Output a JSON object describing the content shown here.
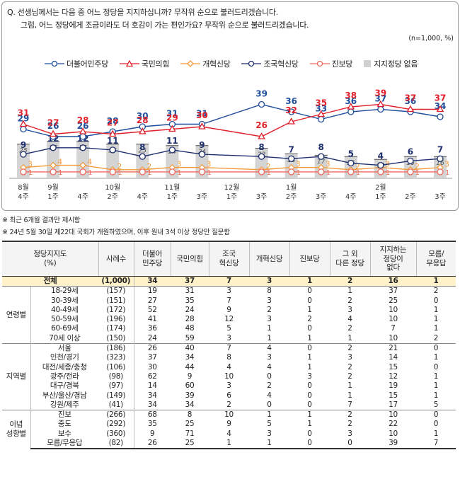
{
  "question": {
    "line1": "Q. 선생님께서는 다음 중 어느 정당을 지지하십니까? 무작위 순으로 불러드리겠습니다.",
    "line2": "그럼, 어느 정당에게 조금이라도 더 호감이 가는 편인가요? 무작위 순으로 불러드리겠습니다.",
    "sample_note": "(n=1,000, %)"
  },
  "colors": {
    "dem": "#1f4e9c",
    "ppp": "#e0202b",
    "reform": "#f39a3a",
    "rebuild": "#1e2f6e",
    "progressive": "#ef6b5f",
    "none_bar": "#d4d4d4"
  },
  "chart_data": {
    "type": "line",
    "x": [
      "8월 4주",
      "9월 1주",
      "4주",
      "10월 2주",
      "4주",
      "11월 1주",
      "3주",
      "12월 1주",
      "3주",
      "1월 2주",
      "3주",
      "4주",
      "2월 1주",
      "2주",
      "3주"
    ],
    "x_month": [
      "8월",
      "9월",
      "",
      "10월",
      "",
      "11월",
      "",
      "12월",
      "",
      "1월",
      "",
      "",
      "2월",
      "",
      ""
    ],
    "x_week": [
      "4주",
      "1주",
      "4주",
      "2주",
      "4주",
      "1주",
      "3주",
      "1주",
      "3주",
      "2주",
      "3주",
      "4주",
      "1주",
      "2주",
      "3주"
    ],
    "ylim": [
      0,
      42
    ],
    "series": [
      {
        "key": "dem",
        "name": "더불어민주당",
        "color": "#1f4e9c",
        "marker": "circle",
        "values": [
          29,
          26,
          26,
          28,
          30,
          31,
          31,
          null,
          39,
          36,
          33,
          36,
          37,
          36,
          34
        ]
      },
      {
        "key": "ppp",
        "name": "국민의힘",
        "color": "#e0202b",
        "marker": "triangle",
        "values": [
          31,
          27,
          28,
          27,
          28,
          29,
          30,
          null,
          26,
          32,
          35,
          38,
          39,
          37,
          37
        ]
      },
      {
        "key": "reform",
        "name": "개혁신당",
        "color": "#f39a3a",
        "marker": "diamond",
        "values": [
          3,
          4,
          4,
          2,
          2,
          3,
          3,
          null,
          2,
          3,
          3,
          2,
          3,
          2,
          3
        ]
      },
      {
        "key": "rebuild",
        "name": "조국혁신당",
        "color": "#1e2f6e",
        "marker": "circle",
        "values": [
          9,
          12,
          12,
          11,
          8,
          11,
          9,
          null,
          8,
          7,
          8,
          5,
          4,
          6,
          7
        ]
      },
      {
        "key": "progressive",
        "name": "진보당",
        "color": "#ef6b5f",
        "marker": "circle",
        "values": [
          1,
          1,
          1,
          1,
          1,
          1,
          1,
          null,
          1,
          1,
          1,
          1,
          1,
          1,
          1
        ]
      }
    ],
    "bars": {
      "name": "지지정당 없음",
      "color": "#d4d4d4",
      "values": [
        25,
        27,
        27,
        25,
        25,
        24,
        24,
        null,
        22,
        18,
        17,
        16,
        14,
        16,
        16
      ]
    }
  },
  "notes": [
    "※ 최근 6개월 결과만 제시함",
    "※ 24년 5월 30일 제22대 국회가 개원하였으며, 이후 원내 3석 이상 정당만 질문함"
  ],
  "table": {
    "header_group": "정당지지도\n(%)",
    "headers": [
      "사례수",
      "더불어\n민주당",
      "국민의힘",
      "조국\n혁신당",
      "개혁신당",
      "진보당",
      "그 외\n다른 정당",
      "지지하는\n정당이\n없다",
      "모름/\n무응답"
    ],
    "total": {
      "label": "전체",
      "values": [
        "(1,000)",
        "34",
        "37",
        "7",
        "3",
        "1",
        "2",
        "16",
        "1"
      ]
    },
    "groups": [
      {
        "name": "연령별",
        "rows": [
          {
            "label": "18-29세",
            "values": [
              "(157)",
              "19",
              "31",
              "3",
              "8",
              "0",
              "1",
              "37",
              "2"
            ]
          },
          {
            "label": "30-39세",
            "values": [
              "(151)",
              "27",
              "35",
              "7",
              "3",
              "0",
              "2",
              "25",
              "0"
            ]
          },
          {
            "label": "40-49세",
            "values": [
              "(172)",
              "52",
              "24",
              "9",
              "2",
              "1",
              "3",
              "10",
              "1"
            ]
          },
          {
            "label": "50-59세",
            "values": [
              "(196)",
              "41",
              "28",
              "12",
              "3",
              "2",
              "4",
              "10",
              "1"
            ]
          },
          {
            "label": "60-69세",
            "values": [
              "(174)",
              "36",
              "48",
              "5",
              "1",
              "0",
              "2",
              "7",
              "1"
            ]
          },
          {
            "label": "70세 이상",
            "values": [
              "(150)",
              "24",
              "59",
              "3",
              "1",
              "1",
              "1",
              "10",
              "2"
            ]
          }
        ]
      },
      {
        "name": "지역별",
        "rows": [
          {
            "label": "서울",
            "values": [
              "(186)",
              "26",
              "40",
              "7",
              "4",
              "0",
              "2",
              "21",
              "0"
            ]
          },
          {
            "label": "인천/경기",
            "values": [
              "(323)",
              "37",
              "34",
              "8",
              "3",
              "1",
              "3",
              "14",
              "1"
            ]
          },
          {
            "label": "대전/세종/충청",
            "values": [
              "(106)",
              "30",
              "44",
              "4",
              "4",
              "1",
              "2",
              "15",
              "0"
            ]
          },
          {
            "label": "광주/전라",
            "values": [
              "(98)",
              "62",
              "9",
              "10",
              "0",
              "3",
              "2",
              "12",
              "1"
            ]
          },
          {
            "label": "대구/경북",
            "values": [
              "(97)",
              "14",
              "60",
              "3",
              "2",
              "0",
              "1",
              "19",
              "1"
            ]
          },
          {
            "label": "부산/울산/경남",
            "values": [
              "(149)",
              "34",
              "39",
              "6",
              "4",
              "0",
              "1",
              "15",
              "1"
            ]
          },
          {
            "label": "강원/제주",
            "values": [
              "(41)",
              "34",
              "34",
              "2",
              "0",
              "0",
              "7",
              "17",
              "5"
            ]
          }
        ]
      },
      {
        "name": "이념\n성향별",
        "rows": [
          {
            "label": "진보",
            "values": [
              "(266)",
              "68",
              "8",
              "10",
              "1",
              "1",
              "2",
              "10",
              "0"
            ]
          },
          {
            "label": "중도",
            "values": [
              "(292)",
              "35",
              "25",
              "9",
              "5",
              "1",
              "2",
              "22",
              "0"
            ]
          },
          {
            "label": "보수",
            "values": [
              "(360)",
              "9",
              "71",
              "4",
              "3",
              "0",
              "3",
              "10",
              "1"
            ]
          },
          {
            "label": "모름/무응답",
            "values": [
              "(82)",
              "26",
              "25",
              "1",
              "1",
              "0",
              "0",
              "39",
              "7"
            ]
          }
        ]
      }
    ]
  }
}
